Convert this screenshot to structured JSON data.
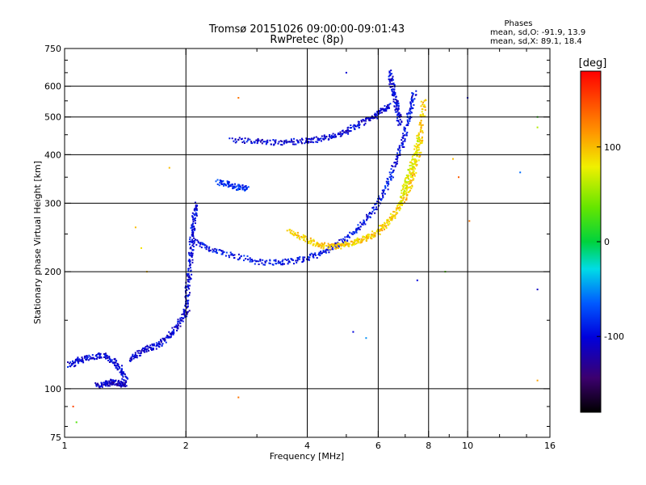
{
  "chart_data": {
    "type": "scatter",
    "title": "Tromsø 20151026 09:00:00-09:01:43",
    "subtitle": "RwPretec (8p)",
    "xlabel": "Frequency [MHz]",
    "ylabel": "Stationary phase Virtual Height [km]",
    "x_scale": "log",
    "y_scale": "log",
    "xlim": [
      1,
      16
    ],
    "ylim": [
      75,
      750
    ],
    "x_ticks": [
      {
        "value": 1,
        "label": "1"
      },
      {
        "value": 2,
        "label": "2"
      },
      {
        "value": 4,
        "label": "4"
      },
      {
        "value": 6,
        "label": "6"
      },
      {
        "value": 8,
        "label": "8"
      },
      {
        "value": 10,
        "label": "10"
      },
      {
        "value": 16,
        "label": "16"
      }
    ],
    "y_ticks": [
      {
        "value": 75,
        "label": "75"
      },
      {
        "value": 100,
        "label": "100"
      },
      {
        "value": 200,
        "label": "200"
      },
      {
        "value": 300,
        "label": "300"
      },
      {
        "value": 400,
        "label": "400"
      },
      {
        "value": 500,
        "label": "500"
      },
      {
        "value": 600,
        "label": "600"
      },
      {
        "value": 750,
        "label": "750"
      }
    ],
    "x_minor_ticks": [
      3,
      5,
      7,
      9,
      12,
      14
    ],
    "y_minor_ticks": [
      80,
      90,
      150,
      250,
      350,
      450,
      550,
      650,
      700
    ],
    "grid": true,
    "grid_x": [
      2,
      4,
      6,
      8,
      10
    ],
    "grid_y": [
      100,
      200,
      300,
      400,
      500,
      600
    ],
    "phases_header": "Phases",
    "phase_stats": [
      "mean, sd,O: -91.9, 13.9",
      "mean, sd,X:  89.1, 18.4"
    ],
    "colorbar": {
      "label": "[deg]",
      "range": [
        -180,
        180
      ],
      "ticks": [
        {
          "value": 100,
          "label": "100"
        },
        {
          "value": 0,
          "label": "0"
        },
        {
          "value": -100,
          "label": "-100"
        }
      ],
      "colormap": "rainbow"
    },
    "series": [
      {
        "mode": "O",
        "traces": [
          {
            "x": [
              1.03,
              1.08,
              1.15,
              1.25,
              1.32,
              1.38,
              1.42
            ],
            "y": [
              115,
              118,
              120,
              122,
              118,
              112,
              105
            ],
            "phase": -100
          },
          {
            "x": [
              1.2,
              1.26,
              1.32,
              1.37,
              1.42
            ],
            "y": [
              102,
              103,
              104,
              103,
              102
            ],
            "phase": -110
          },
          {
            "x": [
              1.45,
              1.55,
              1.65,
              1.75,
              1.85,
              1.95,
              2.02
            ],
            "y": [
              118,
              125,
              128,
              132,
              140,
              150,
              160
            ],
            "phase": -105
          },
          {
            "x": [
              2.0,
              2.02,
              2.04,
              2.06,
              2.08,
              2.1,
              2.12
            ],
            "y": [
              160,
              180,
              200,
              225,
              250,
              275,
              300
            ],
            "phase": -100
          },
          {
            "x": [
              2.08,
              2.3,
              2.6,
              3.0,
              3.4,
              3.8,
              4.2,
              4.6,
              5.0,
              5.4,
              5.8,
              6.2,
              6.5,
              6.8,
              7.0,
              7.2,
              7.4
            ],
            "y": [
              240,
              228,
              220,
              212,
              211,
              214,
              220,
              230,
              243,
              260,
              285,
              320,
              360,
              410,
              460,
              520,
              580
            ],
            "phase": -95
          },
          {
            "x": [
              2.6,
              3.0,
              3.4,
              3.8,
              4.2,
              4.6,
              5.0,
              5.4,
              5.8,
              6.1,
              6.4
            ],
            "y": [
              437,
              432,
              430,
              432,
              437,
              445,
              460,
              478,
              498,
              515,
              535
            ],
            "phase": -105
          },
          {
            "x": [
              6.4,
              6.5,
              6.6,
              6.7,
              6.8
            ],
            "y": [
              650,
              600,
              560,
              520,
              480
            ],
            "phase": -100
          },
          {
            "x": [
              2.4,
              2.55,
              2.7,
              2.85
            ],
            "y": [
              340,
              335,
              330,
              328
            ],
            "phase": -80
          }
        ]
      },
      {
        "mode": "X",
        "traces": [
          {
            "x": [
              3.6,
              3.9,
              4.2,
              4.5,
              4.8,
              5.1,
              5.4,
              5.7,
              6.0,
              6.3,
              6.6,
              6.9,
              7.2,
              7.4,
              7.6,
              7.7,
              7.8
            ],
            "y": [
              255,
              245,
              236,
              232,
              233,
              236,
              240,
              246,
              254,
              266,
              282,
              305,
              335,
              370,
              420,
              480,
              560
            ],
            "phase": 95
          },
          {
            "x": [
              6.8,
              7.0,
              7.2,
              7.4,
              7.6
            ],
            "y": [
              300,
              330,
              360,
              400,
              450
            ],
            "phase": 75
          }
        ]
      }
    ],
    "scattered_points": [
      {
        "x": 1.05,
        "y": 90,
        "phase": 150
      },
      {
        "x": 1.07,
        "y": 82,
        "phase": 30
      },
      {
        "x": 1.5,
        "y": 260,
        "phase": 100
      },
      {
        "x": 1.55,
        "y": 230,
        "phase": 85
      },
      {
        "x": 1.6,
        "y": 200,
        "phase": 100
      },
      {
        "x": 1.82,
        "y": 370,
        "phase": 100
      },
      {
        "x": 2.7,
        "y": 560,
        "phase": 130
      },
      {
        "x": 5.0,
        "y": 650,
        "phase": -105
      },
      {
        "x": 10.0,
        "y": 560,
        "phase": -100
      },
      {
        "x": 10.1,
        "y": 270,
        "phase": 130
      },
      {
        "x": 14.9,
        "y": 500,
        "phase": 20
      },
      {
        "x": 14.9,
        "y": 470,
        "phase": 60
      },
      {
        "x": 14.9,
        "y": 180,
        "phase": -110
      },
      {
        "x": 14.9,
        "y": 105,
        "phase": 110
      },
      {
        "x": 5.2,
        "y": 140,
        "phase": -100
      },
      {
        "x": 5.6,
        "y": 135,
        "phase": -50
      },
      {
        "x": 7.5,
        "y": 190,
        "phase": -100
      },
      {
        "x": 8.8,
        "y": 200,
        "phase": 30
      },
      {
        "x": 9.2,
        "y": 390,
        "phase": 100
      },
      {
        "x": 9.5,
        "y": 350,
        "phase": 140
      },
      {
        "x": 13.5,
        "y": 360,
        "phase": -60
      },
      {
        "x": 2.7,
        "y": 95,
        "phase": 130
      }
    ]
  }
}
